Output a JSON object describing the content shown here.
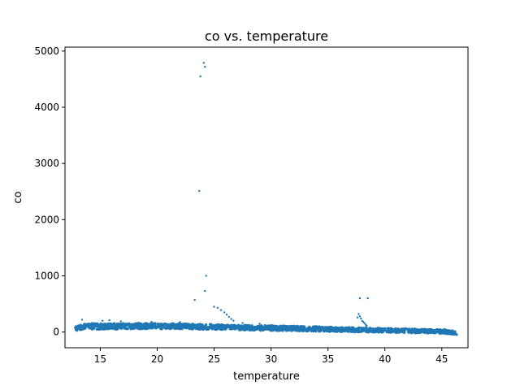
{
  "chart_data": {
    "type": "scatter",
    "title": "co vs. temperature",
    "xlabel": "temperature",
    "ylabel": "co",
    "xlim": [
      11.9,
      47.3
    ],
    "ylim": [
      -280,
      5070
    ],
    "xticks": [
      15,
      20,
      25,
      30,
      35,
      40,
      45
    ],
    "yticks": [
      0,
      1000,
      2000,
      3000,
      4000,
      5000
    ],
    "grid": false,
    "series": [
      {
        "color": "#1f77b4",
        "band": [
          [
            12.8,
            80
          ],
          [
            13.5,
            95
          ],
          [
            14.5,
            100
          ],
          [
            15.5,
            100
          ],
          [
            16.5,
            102
          ],
          [
            18,
            105
          ],
          [
            20,
            105
          ],
          [
            22,
            100
          ],
          [
            24,
            95
          ],
          [
            26,
            85
          ],
          [
            28,
            75
          ],
          [
            30,
            70
          ],
          [
            32,
            65
          ],
          [
            34,
            55
          ],
          [
            36,
            45
          ],
          [
            38,
            38
          ],
          [
            40,
            30
          ],
          [
            42,
            22
          ],
          [
            44,
            15
          ],
          [
            45.5,
            5
          ],
          [
            46.3,
            -20
          ]
        ],
        "points": [
          [
            24.1,
            4790
          ],
          [
            24.2,
            4720
          ],
          [
            23.8,
            4550
          ],
          [
            23.7,
            2510
          ],
          [
            24.3,
            1000
          ],
          [
            24.2,
            730
          ],
          [
            23.3,
            570
          ],
          [
            25.0,
            450
          ],
          [
            25.3,
            430
          ],
          [
            25.6,
            390
          ],
          [
            25.9,
            350
          ],
          [
            26.1,
            310
          ],
          [
            26.3,
            270
          ],
          [
            26.5,
            230
          ],
          [
            26.7,
            200
          ],
          [
            37.8,
            600
          ],
          [
            38.5,
            600
          ],
          [
            37.7,
            320
          ],
          [
            37.8,
            280
          ],
          [
            37.9,
            240
          ],
          [
            38.0,
            200
          ],
          [
            38.1,
            180
          ],
          [
            38.2,
            160
          ],
          [
            38.3,
            130
          ],
          [
            37.6,
            260
          ],
          [
            38.4,
            110
          ],
          [
            13.4,
            220
          ],
          [
            15.2,
            200
          ],
          [
            15.8,
            210
          ],
          [
            16.8,
            190
          ],
          [
            19.5,
            180
          ],
          [
            22.0,
            175
          ],
          [
            27.5,
            160
          ],
          [
            29.0,
            150
          ]
        ]
      }
    ]
  }
}
